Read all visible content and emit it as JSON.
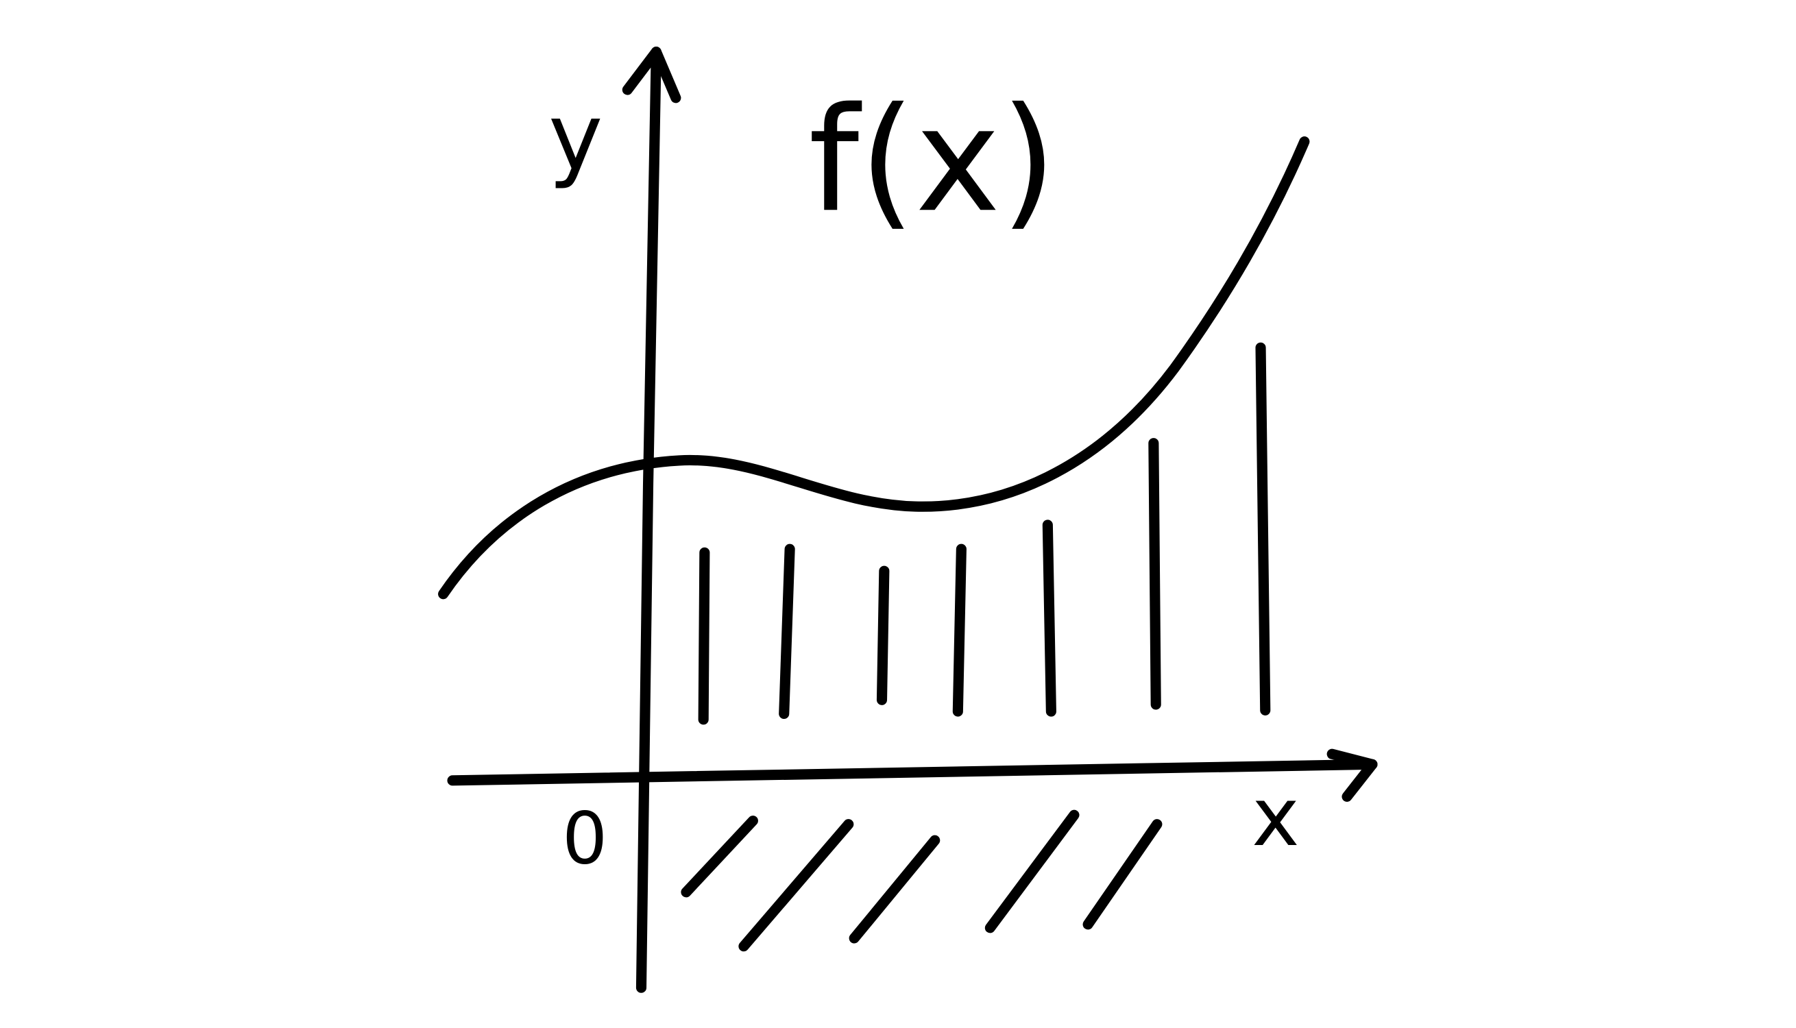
{
  "labels": {
    "y_axis": "y",
    "function": "f(x)",
    "x_axis": "x",
    "origin": "0"
  }
}
